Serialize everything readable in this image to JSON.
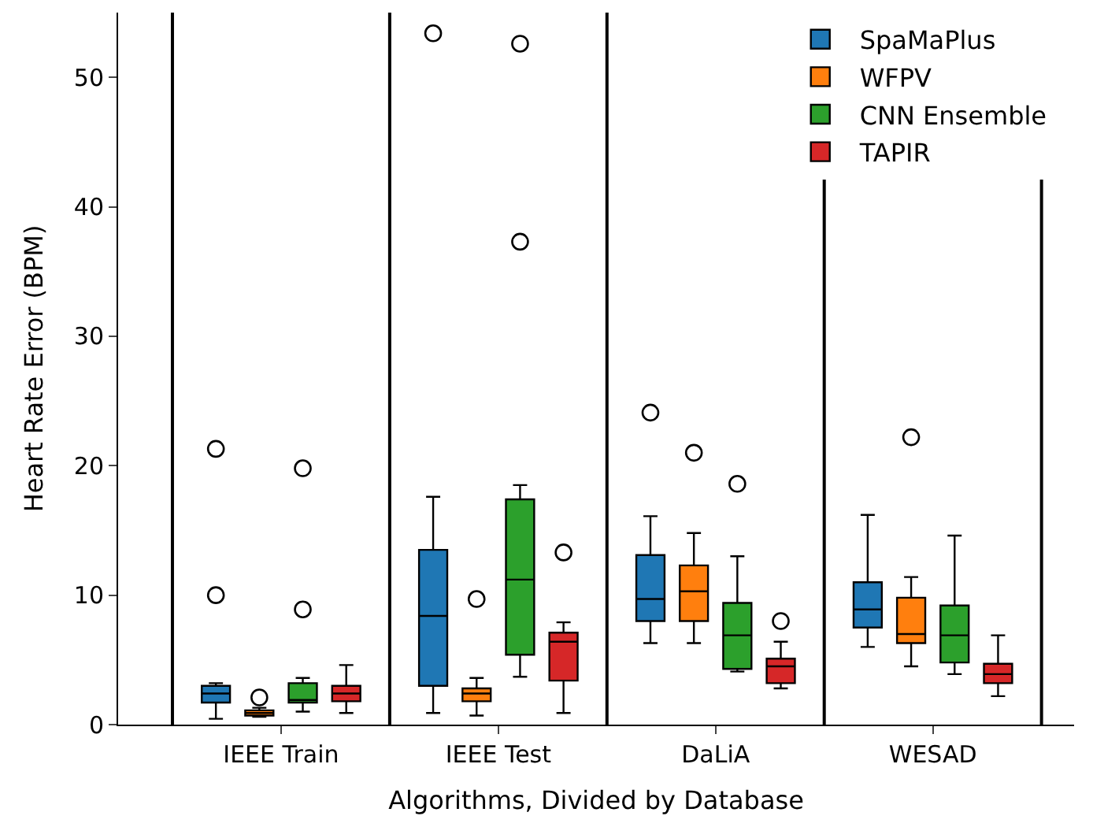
{
  "chart_data": {
    "type": "box",
    "xlabel": "Algorithms, Divided by Database",
    "ylabel": "Heart Rate Error (BPM)",
    "categories": [
      "IEEE Train",
      "IEEE Test",
      "DaLiA",
      "WESAD"
    ],
    "ylim": [
      0,
      55
    ],
    "yticks": [
      0,
      10,
      20,
      30,
      40,
      50
    ],
    "grid": false,
    "legend": "top right",
    "series": [
      {
        "name": "SpaMaPlus",
        "color": "#1f77b4",
        "boxes": [
          {
            "low": 0.45,
            "q1": 1.7,
            "median": 2.4,
            "q3": 3.0,
            "high": 3.2,
            "outliers": [
              21.3,
              10.0
            ]
          },
          {
            "low": 0.9,
            "q1": 3.0,
            "median": 8.4,
            "q3": 13.5,
            "high": 17.6,
            "outliers": [
              53.4
            ]
          },
          {
            "low": 6.3,
            "q1": 8.0,
            "median": 9.7,
            "q3": 13.1,
            "high": 16.1,
            "outliers": [
              24.1
            ]
          },
          {
            "low": 6.0,
            "q1": 7.5,
            "median": 8.9,
            "q3": 11.0,
            "high": 16.2
          }
        ]
      },
      {
        "name": "WFPV",
        "color": "#ff7f0e",
        "boxes": [
          {
            "low": 0.6,
            "q1": 0.7,
            "median": 0.9,
            "q3": 1.1,
            "high": 1.3,
            "outliers": [
              2.1
            ]
          },
          {
            "low": 0.7,
            "q1": 1.8,
            "median": 2.4,
            "q3": 2.8,
            "high": 3.6,
            "outliers": [
              9.7
            ]
          },
          {
            "low": 6.3,
            "q1": 8.0,
            "median": 10.3,
            "q3": 12.3,
            "high": 14.8,
            "outliers": [
              21.0
            ]
          },
          {
            "low": 4.5,
            "q1": 6.3,
            "median": 7.0,
            "q3": 9.8,
            "high": 11.4,
            "outliers": [
              22.2
            ]
          }
        ]
      },
      {
        "name": "CNN Ensemble",
        "color": "#2ca02c",
        "boxes": [
          {
            "low": 1.0,
            "q1": 1.7,
            "median": 1.9,
            "q3": 3.2,
            "high": 3.6,
            "outliers": [
              19.8,
              8.9
            ]
          },
          {
            "low": 3.7,
            "q1": 5.4,
            "median": 11.2,
            "q3": 17.4,
            "high": 18.5,
            "outliers": [
              52.6,
              37.3
            ]
          },
          {
            "low": 4.1,
            "q1": 4.3,
            "median": 6.9,
            "q3": 9.4,
            "high": 13.0,
            "outliers": [
              18.6
            ]
          },
          {
            "low": 3.9,
            "q1": 4.8,
            "median": 6.9,
            "q3": 9.2,
            "high": 14.6
          }
        ]
      },
      {
        "name": "TAPIR",
        "color": "#d62728",
        "boxes": [
          {
            "low": 0.9,
            "q1": 1.8,
            "median": 2.4,
            "q3": 3.0,
            "high": 4.6
          },
          {
            "low": 0.9,
            "q1": 3.4,
            "median": 6.4,
            "q3": 7.1,
            "high": 7.9,
            "outliers": [
              13.3
            ]
          },
          {
            "low": 2.8,
            "q1": 3.2,
            "median": 4.5,
            "q3": 5.1,
            "high": 6.4,
            "outliers": [
              8.0
            ]
          },
          {
            "low": 2.2,
            "q1": 3.2,
            "median": 3.9,
            "q3": 4.7,
            "high": 6.9
          }
        ]
      }
    ]
  }
}
